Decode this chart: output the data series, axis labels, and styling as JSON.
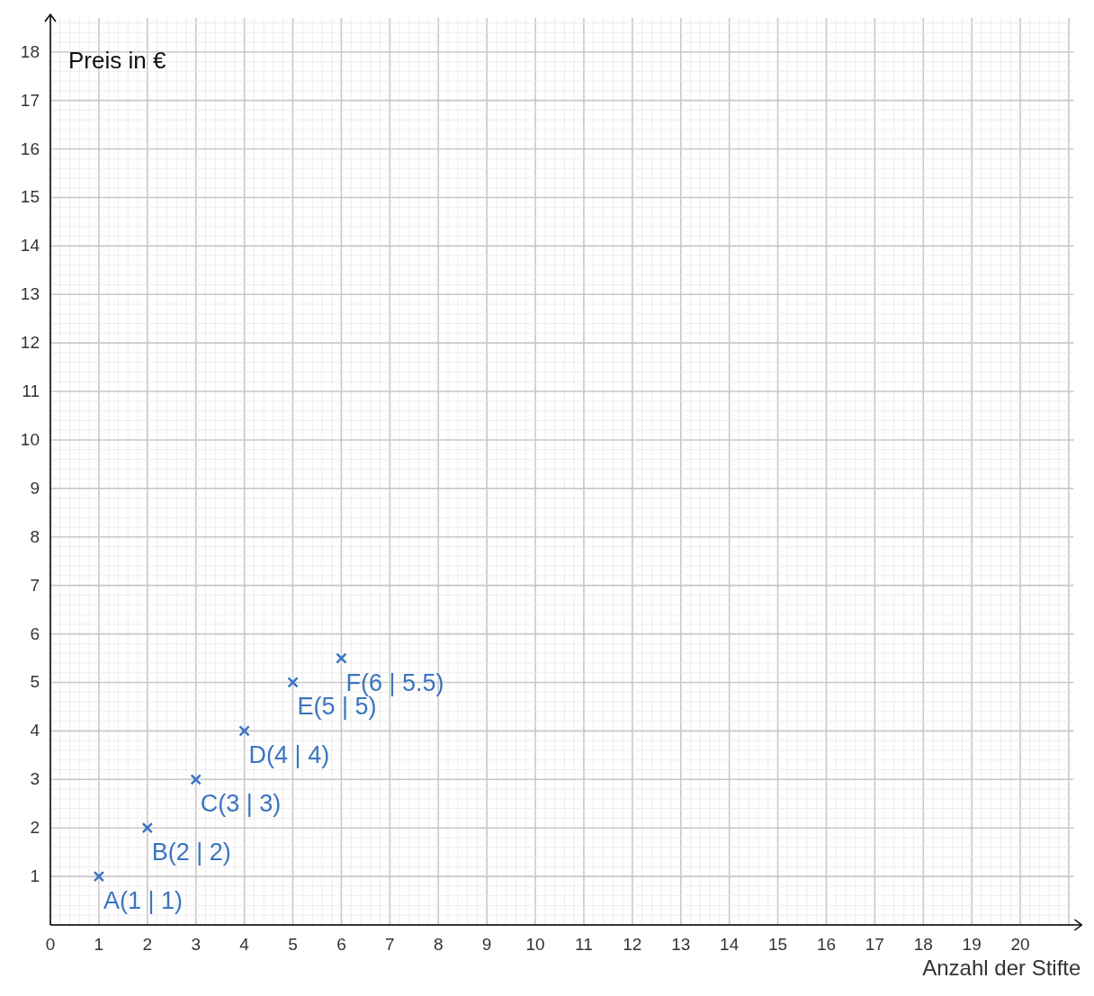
{
  "chart_data": {
    "type": "scatter",
    "ylabel": "Preis in €",
    "xlabel": "Anzahl der Stifte",
    "x": [
      1,
      2,
      3,
      4,
      5,
      6
    ],
    "values": [
      1,
      2,
      3,
      4,
      5,
      5.5
    ],
    "color": "#3a74c0",
    "marker": "cross",
    "xlim": [
      0,
      21.1
    ],
    "ylim": [
      0,
      18.7
    ],
    "xticks": [
      0,
      1,
      2,
      3,
      4,
      5,
      6,
      7,
      8,
      9,
      10,
      11,
      12,
      13,
      14,
      15,
      16,
      17,
      18,
      19,
      20
    ],
    "yticks": [
      1,
      2,
      3,
      4,
      5,
      6,
      7,
      8,
      9,
      10,
      11,
      12,
      13,
      14,
      15,
      16,
      17,
      18
    ],
    "grid": true,
    "annotations": [
      {
        "text": "A(1 | 1)",
        "x": 1,
        "y": 1
      },
      {
        "text": "B(2 | 2)",
        "x": 2,
        "y": 2
      },
      {
        "text": "C(3 | 3)",
        "x": 3,
        "y": 3
      },
      {
        "text": "D(4 | 4)",
        "x": 4,
        "y": 4
      },
      {
        "text": "E(5 | 5)",
        "x": 5,
        "y": 5
      },
      {
        "text": "F(6 | 5.5)",
        "x": 6,
        "y": 5.5
      }
    ]
  }
}
